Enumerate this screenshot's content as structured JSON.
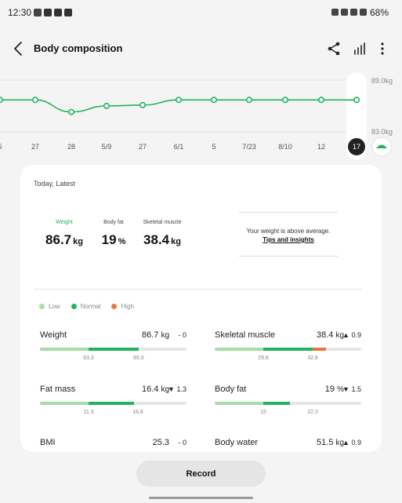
{
  "status_bar": {
    "time": "12:30",
    "battery": "68%",
    "notification_icons": [
      "twitter-icon",
      "news-icon",
      "gallery-icon",
      "widget-icon"
    ],
    "system_icons": [
      "bluetooth-icon",
      "wifi-icon",
      "signal-icon",
      "mute-icon"
    ]
  },
  "header": {
    "title": "Body composition",
    "actions": [
      "share-icon",
      "chart-icon",
      "more-icon"
    ]
  },
  "chart_data": {
    "type": "line",
    "x": [
      "5",
      "27",
      "28",
      "5/9",
      "27",
      "6/1",
      "5",
      "7/23",
      "8/10",
      "12",
      "17"
    ],
    "ytick_labels": [
      "89.0kg",
      "83.0kg"
    ],
    "ylim": [
      83.0,
      89.0
    ],
    "series": [
      {
        "values": [
          86.7,
          86.7,
          85.3,
          86.0,
          86.1,
          86.7,
          86.7,
          86.7,
          86.7,
          86.7,
          86.7
        ]
      }
    ],
    "selected_label": "17",
    "color": "#22b35e",
    "grid": true
  },
  "card": {
    "header": "Today, Latest",
    "summary": [
      {
        "label": "Weight",
        "value": "86.7",
        "unit": "kg",
        "highlight": true
      },
      {
        "label": "Body fat",
        "value": "19",
        "unit": "%",
        "highlight": false
      },
      {
        "label": "Skeletal muscle",
        "value": "38.4",
        "unit": "kg",
        "highlight": false
      }
    ],
    "insight": {
      "message": "Your weight is above average.",
      "link": "Tips and insights"
    },
    "legend": [
      {
        "label": "Low",
        "color": "#a8dca5"
      },
      {
        "label": "Normal",
        "color": "#22b35e"
      },
      {
        "label": "High",
        "color": "#e7763d"
      }
    ],
    "metrics": [
      {
        "name": "Weight",
        "value": "86.7",
        "unit": "kg",
        "delta_arrow": "-",
        "delta": "0",
        "thresholds": [
          "63.3",
          "85.6"
        ],
        "level": 0.67
      },
      {
        "name": "Skeletal muscle",
        "value": "38.4",
        "unit": "kg",
        "delta_arrow": "▲",
        "delta": "0.9",
        "thresholds": [
          "29.8",
          "32.8"
        ],
        "level": 0.76
      },
      {
        "name": "Fat mass",
        "value": "16.4",
        "unit": "kg",
        "delta_arrow": "▼",
        "delta": "1.3",
        "thresholds": [
          "11.3",
          "16.8"
        ],
        "level": 0.64
      },
      {
        "name": "Body fat",
        "value": "19",
        "unit": "%",
        "delta_arrow": "▼",
        "delta": "1.5",
        "thresholds": [
          "15",
          "22.3"
        ],
        "level": 0.51
      },
      {
        "name": "BMI",
        "value": "25.3",
        "unit": "",
        "delta_arrow": "-",
        "delta": "0",
        "thresholds": [],
        "level": null
      },
      {
        "name": "Body water",
        "value": "51.5",
        "unit": "kg",
        "delta_arrow": "▲",
        "delta": "0.9",
        "thresholds": [],
        "level": null
      }
    ]
  },
  "record_button": "Record"
}
